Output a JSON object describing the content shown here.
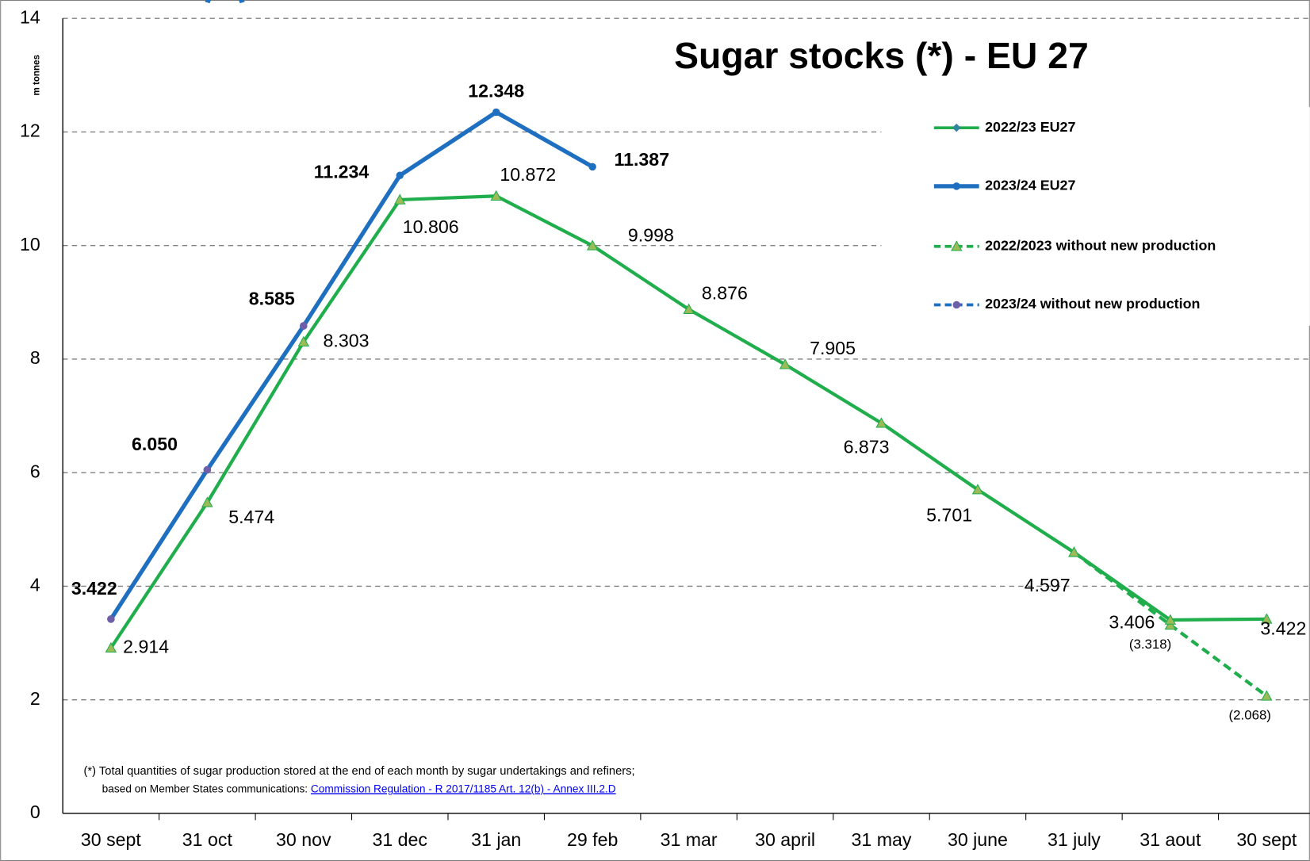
{
  "chart_data": {
    "type": "line",
    "title": "Sugar stocks (*) - EU 27",
    "y_label": "m tonnes",
    "footnote": {
      "line1": "(*) Total quantities of sugar production stored at the end of each month by sugar undertakings and refiners;",
      "line2": "based on Member States communications: ",
      "link": "Commission Regulation - R 2017/1185 Art. 12(b) - Annex III.2.D"
    },
    "categories": [
      "30 sept",
      "31 oct",
      "30 nov",
      "31 dec",
      "31 jan",
      "29 feb",
      "31 mar",
      "30 april",
      "31 may",
      "30 june",
      "31 july",
      "31 aout",
      "30 sept"
    ],
    "ylim": [
      0,
      14
    ],
    "yticks": [
      0,
      2,
      4,
      6,
      8,
      10,
      12,
      14
    ],
    "grid": true,
    "legend": "right",
    "series": [
      {
        "name": "2022/23  EU27",
        "color": "#1fae4b",
        "dash": false,
        "values": [
          2.914,
          5.474,
          8.303,
          10.806,
          10.872,
          9.998,
          8.876,
          7.905,
          6.873,
          5.701,
          4.597,
          3.406,
          3.422
        ]
      },
      {
        "name": "2023/24  EU27",
        "color": "#1f6fc1",
        "dash": false,
        "values": [
          3.422,
          6.05,
          8.585,
          11.234,
          12.348,
          11.387,
          null,
          null,
          null,
          null,
          null,
          null,
          null
        ],
        "value_labels": [
          "3.422",
          "6.050",
          "8.585",
          "11.234",
          "12.348",
          "11.387",
          null,
          null,
          null,
          null,
          null,
          null,
          null
        ]
      },
      {
        "name": "2022/2023 without new production",
        "color": "#1fae4b",
        "dash": true,
        "values": [
          null,
          null,
          null,
          null,
          null,
          null,
          null,
          null,
          null,
          null,
          4.597,
          3.318,
          2.068
        ],
        "value_labels": [
          null,
          null,
          null,
          null,
          null,
          null,
          null,
          null,
          null,
          null,
          null,
          "(3.318)",
          "(2.068)"
        ]
      },
      {
        "name": "2023/24 without new production",
        "color": "#1f6fc1",
        "dash": true,
        "values": [
          3.422,
          6.05,
          8.585,
          null,
          null,
          null,
          null,
          null,
          null,
          null,
          null,
          null,
          null
        ]
      }
    ]
  }
}
